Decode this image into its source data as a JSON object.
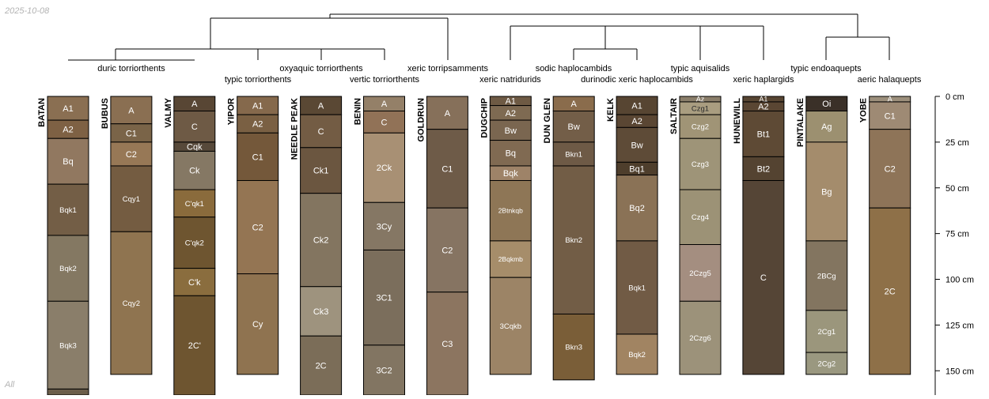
{
  "date": "2025-10-08",
  "footer_label": "All",
  "depth_axis": {
    "unit": "cm",
    "max_depth_cm": 165,
    "ticks": [
      "0 cm",
      "25 cm",
      "50 cm",
      "75 cm",
      "100 cm",
      "125 cm",
      "150 cm"
    ],
    "tick_values": [
      0,
      25,
      50,
      75,
      100,
      125,
      150
    ]
  },
  "taxa_labels": [
    "duric torriorthents",
    "typic torriorthents",
    "oxyaquic torriorthents",
    "vertic torriorthents",
    "xeric torripsamments",
    "xeric natridurids",
    "sodic haplocambids",
    "durinodic xeric haplocambids",
    "typic aquisalids",
    "xeric haplargids",
    "typic endoaquepts",
    "aeric halaquepts"
  ],
  "profiles": [
    {
      "name": "BATAN",
      "horizons": [
        {
          "name": "A1",
          "top": 0,
          "bottom": 13,
          "color": "#8a6f52"
        },
        {
          "name": "A2",
          "top": 13,
          "bottom": 23,
          "color": "#7e6144"
        },
        {
          "name": "Bq",
          "top": 23,
          "bottom": 48,
          "color": "#917860"
        },
        {
          "name": "Bqk1",
          "top": 48,
          "bottom": 76,
          "color": "#735e46"
        },
        {
          "name": "Bqk2",
          "top": 76,
          "bottom": 112,
          "color": "#847862"
        },
        {
          "name": "Bqk3",
          "top": 112,
          "bottom": 160,
          "color": "#8a7e6a"
        },
        {
          "name": "",
          "top": 160,
          "bottom": 170,
          "color": "#6b5e4a"
        }
      ]
    },
    {
      "name": "BUBUS",
      "horizons": [
        {
          "name": "A",
          "top": 0,
          "bottom": 15,
          "color": "#8a6f52"
        },
        {
          "name": "C1",
          "top": 15,
          "bottom": 25,
          "color": "#7a6448"
        },
        {
          "name": "C2",
          "top": 25,
          "bottom": 38,
          "color": "#977856"
        },
        {
          "name": "Cqy1",
          "top": 38,
          "bottom": 74,
          "color": "#745c41"
        },
        {
          "name": "Cqy2",
          "top": 74,
          "bottom": 152,
          "color": "#8f7450"
        }
      ]
    },
    {
      "name": "VALMY",
      "horizons": [
        {
          "name": "A",
          "top": 0,
          "bottom": 8,
          "color": "#584634"
        },
        {
          "name": "C",
          "top": 8,
          "bottom": 25,
          "color": "#6e5a45"
        },
        {
          "name": "Cqk",
          "top": 25,
          "bottom": 30,
          "color": "#57493a"
        },
        {
          "name": "Ck",
          "top": 30,
          "bottom": 51,
          "color": "#857864"
        },
        {
          "name": "C'qk1",
          "top": 51,
          "bottom": 66,
          "color": "#8a6b3c"
        },
        {
          "name": "C'qk2",
          "top": 66,
          "bottom": 94,
          "color": "#6e5530"
        },
        {
          "name": "C'k",
          "top": 94,
          "bottom": 109,
          "color": "#8a6d3e"
        },
        {
          "name": "2C'",
          "top": 109,
          "bottom": 170,
          "color": "#6e5530"
        }
      ]
    },
    {
      "name": "YIPOR",
      "horizons": [
        {
          "name": "A1",
          "top": 0,
          "bottom": 10,
          "color": "#85694c"
        },
        {
          "name": "A2",
          "top": 10,
          "bottom": 20,
          "color": "#7a6043"
        },
        {
          "name": "C1",
          "top": 20,
          "bottom": 46,
          "color": "#74583a"
        },
        {
          "name": "C2",
          "top": 46,
          "bottom": 97,
          "color": "#947553"
        },
        {
          "name": "Cy",
          "top": 97,
          "bottom": 152,
          "color": "#8f7350"
        }
      ]
    },
    {
      "name": "NEEDLE PEAK",
      "horizons": [
        {
          "name": "A",
          "top": 0,
          "bottom": 10,
          "color": "#5a4834"
        },
        {
          "name": "C",
          "top": 10,
          "bottom": 28,
          "color": "#735c44"
        },
        {
          "name": "Ck1",
          "top": 28,
          "bottom": 53,
          "color": "#6b5640"
        },
        {
          "name": "Ck2",
          "top": 53,
          "bottom": 104,
          "color": "#837560"
        },
        {
          "name": "Ck3",
          "top": 104,
          "bottom": 131,
          "color": "#9e937e"
        },
        {
          "name": "2C",
          "top": 131,
          "bottom": 170,
          "color": "#7b6d58"
        }
      ]
    },
    {
      "name": "BENIN",
      "horizons": [
        {
          "name": "A",
          "top": 0,
          "bottom": 8,
          "color": "#948068"
        },
        {
          "name": "C",
          "top": 8,
          "bottom": 20,
          "color": "#917257"
        },
        {
          "name": "2Ck",
          "top": 20,
          "bottom": 58,
          "color": "#a89074"
        },
        {
          "name": "3Cy",
          "top": 58,
          "bottom": 84,
          "color": "#857764"
        },
        {
          "name": "3C1",
          "top": 84,
          "bottom": 136,
          "color": "#7b6e5c"
        },
        {
          "name": "3C2",
          "top": 136,
          "bottom": 170,
          "color": "#827562"
        }
      ]
    },
    {
      "name": "GOLDRUN",
      "horizons": [
        {
          "name": "A",
          "top": 0,
          "bottom": 18,
          "color": "#86705a"
        },
        {
          "name": "C1",
          "top": 18,
          "bottom": 61,
          "color": "#6e5b48"
        },
        {
          "name": "C2",
          "top": 61,
          "bottom": 107,
          "color": "#867462"
        },
        {
          "name": "C3",
          "top": 107,
          "bottom": 170,
          "color": "#8c7560"
        }
      ]
    },
    {
      "name": "DUGCHIP",
      "horizons": [
        {
          "name": "A1",
          "top": 0,
          "bottom": 5,
          "color": "#6e5a44"
        },
        {
          "name": "A2",
          "top": 5,
          "bottom": 13,
          "color": "#7e6a52"
        },
        {
          "name": "Bw",
          "top": 13,
          "bottom": 24,
          "color": "#7a6650"
        },
        {
          "name": "Bq",
          "top": 24,
          "bottom": 38,
          "color": "#806a52"
        },
        {
          "name": "Bqk",
          "top": 38,
          "bottom": 46,
          "color": "#9e8368"
        },
        {
          "name": "2Btnkqb",
          "top": 46,
          "bottom": 79,
          "color": "#8e7656"
        },
        {
          "name": "2Bqkmb",
          "top": 79,
          "bottom": 99,
          "color": "#a68d6a"
        },
        {
          "name": "3Cqkb",
          "top": 99,
          "bottom": 152,
          "color": "#9c8466"
        }
      ]
    },
    {
      "name": "DUN GLEN",
      "horizons": [
        {
          "name": "A",
          "top": 0,
          "bottom": 8,
          "color": "#8a6c4c"
        },
        {
          "name": "Bw",
          "top": 8,
          "bottom": 25,
          "color": "#735e48"
        },
        {
          "name": "Bkn1",
          "top": 25,
          "bottom": 38,
          "color": "#6e5a46"
        },
        {
          "name": "Bkn2",
          "top": 38,
          "bottom": 119,
          "color": "#725d46"
        },
        {
          "name": "Bkn3",
          "top": 119,
          "bottom": 155,
          "color": "#7a5e38"
        }
      ]
    },
    {
      "name": "KELK",
      "horizons": [
        {
          "name": "A1",
          "top": 0,
          "bottom": 10,
          "color": "#574532"
        },
        {
          "name": "A2",
          "top": 10,
          "bottom": 17,
          "color": "#5a4633"
        },
        {
          "name": "Bw",
          "top": 17,
          "bottom": 36,
          "color": "#5e4b37"
        },
        {
          "name": "Bq1",
          "top": 36,
          "bottom": 43,
          "color": "#4e3e2c"
        },
        {
          "name": "Bq2",
          "top": 43,
          "bottom": 79,
          "color": "#8a7256"
        },
        {
          "name": "Bqk1",
          "top": 79,
          "bottom": 130,
          "color": "#715b45"
        },
        {
          "name": "Bqk2",
          "top": 130,
          "bottom": 152,
          "color": "#a18462"
        }
      ]
    },
    {
      "name": "SALTAIR",
      "horizons": [
        {
          "name": "Az",
          "top": 0,
          "bottom": 3,
          "color": "#8a7e6a"
        },
        {
          "name": "Czg1",
          "top": 3,
          "bottom": 10,
          "color": "#a99d80"
        },
        {
          "name": "Czg2",
          "top": 10,
          "bottom": 23,
          "color": "#a09476"
        },
        {
          "name": "Czg3",
          "top": 23,
          "bottom": 51,
          "color": "#9e9478"
        },
        {
          "name": "Czg4",
          "top": 51,
          "bottom": 81,
          "color": "#9c9276"
        },
        {
          "name": "2Czg5",
          "top": 81,
          "bottom": 112,
          "color": "#a48e80"
        },
        {
          "name": "2Czg6",
          "top": 112,
          "bottom": 152,
          "color": "#9c927a"
        }
      ]
    },
    {
      "name": "HUNEWILL",
      "horizons": [
        {
          "name": "A1",
          "top": 0,
          "bottom": 3,
          "color": "#574532"
        },
        {
          "name": "A2",
          "top": 3,
          "bottom": 8,
          "color": "#5a4633"
        },
        {
          "name": "Bt1",
          "top": 8,
          "bottom": 33,
          "color": "#5e4a35"
        },
        {
          "name": "Bt2",
          "top": 33,
          "bottom": 46,
          "color": "#544331"
        },
        {
          "name": "C",
          "top": 46,
          "bottom": 152,
          "color": "#554536"
        }
      ]
    },
    {
      "name": "PINTALAKE",
      "horizons": [
        {
          "name": "Oi",
          "top": 0,
          "bottom": 8,
          "color": "#3a3028"
        },
        {
          "name": "Ag",
          "top": 8,
          "bottom": 25,
          "color": "#9c9070"
        },
        {
          "name": "Bg",
          "top": 25,
          "bottom": 79,
          "color": "#a48c6c"
        },
        {
          "name": "2BCg",
          "top": 79,
          "bottom": 117,
          "color": "#837560"
        },
        {
          "name": "2Cg1",
          "top": 117,
          "bottom": 140,
          "color": "#9b967c"
        },
        {
          "name": "2Cg2",
          "top": 140,
          "bottom": 152,
          "color": "#9a9880"
        }
      ]
    },
    {
      "name": "YOBE",
      "horizons": [
        {
          "name": "A",
          "top": 0,
          "bottom": 3,
          "color": "#9c8f7c"
        },
        {
          "name": "C1",
          "top": 3,
          "bottom": 18,
          "color": "#9e8a74"
        },
        {
          "name": "C2",
          "top": 18,
          "bottom": 61,
          "color": "#8e7458"
        },
        {
          "name": "2C",
          "top": 61,
          "bottom": 152,
          "color": "#8e7048"
        }
      ]
    }
  ]
}
